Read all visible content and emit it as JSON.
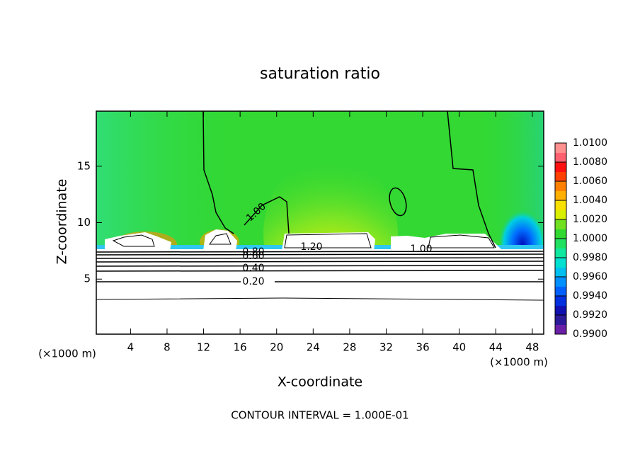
{
  "chart_data": {
    "type": "contour",
    "title": "saturation ratio",
    "xlabel": "X-coordinate",
    "ylabel": "Z-coordinate",
    "x_unit_label": "(×1000 m)",
    "footer": "CONTOUR INTERVAL = 1.000E-01",
    "xlim": [
      0.25,
      49.25
    ],
    "ylim": [
      0.125,
      19.875
    ],
    "xticks": [
      4,
      8,
      12,
      16,
      20,
      24,
      28,
      32,
      36,
      40,
      44,
      48
    ],
    "yticks": [
      5,
      10,
      15
    ],
    "contour_labels": [
      "1.00",
      "1.20",
      "0.80",
      "0.60",
      "0.40",
      "0.20",
      "1.00"
    ],
    "colorbar": {
      "lim": [
        0.99,
        1.01
      ],
      "ticks": [
        {
          "value": 0.99,
          "label": "0.9900"
        },
        {
          "value": 0.992,
          "label": "0.9920"
        },
        {
          "value": 0.994,
          "label": "0.9940"
        },
        {
          "value": 0.996,
          "label": "0.9960"
        },
        {
          "value": 0.998,
          "label": "0.9980"
        },
        {
          "value": 1.0,
          "label": "1.0000"
        },
        {
          "value": 1.002,
          "label": "1.0020"
        },
        {
          "value": 1.004,
          "label": "1.0040"
        },
        {
          "value": 1.006,
          "label": "1.0060"
        },
        {
          "value": 1.008,
          "label": "1.0080"
        },
        {
          "value": 1.01,
          "label": "1.0100"
        }
      ],
      "colors": [
        "#6a1fa8",
        "#2a1a9a",
        "#1010b0",
        "#0030e0",
        "#0060ff",
        "#0090ff",
        "#00c0f0",
        "#00e0d0",
        "#10e8a0",
        "#20e060",
        "#30d830",
        "#70e020",
        "#d8f000",
        "#f8e000",
        "#ffb000",
        "#ff8000",
        "#ff4000",
        "#ff1010",
        "#ff6070",
        "#ff9090"
      ]
    }
  }
}
